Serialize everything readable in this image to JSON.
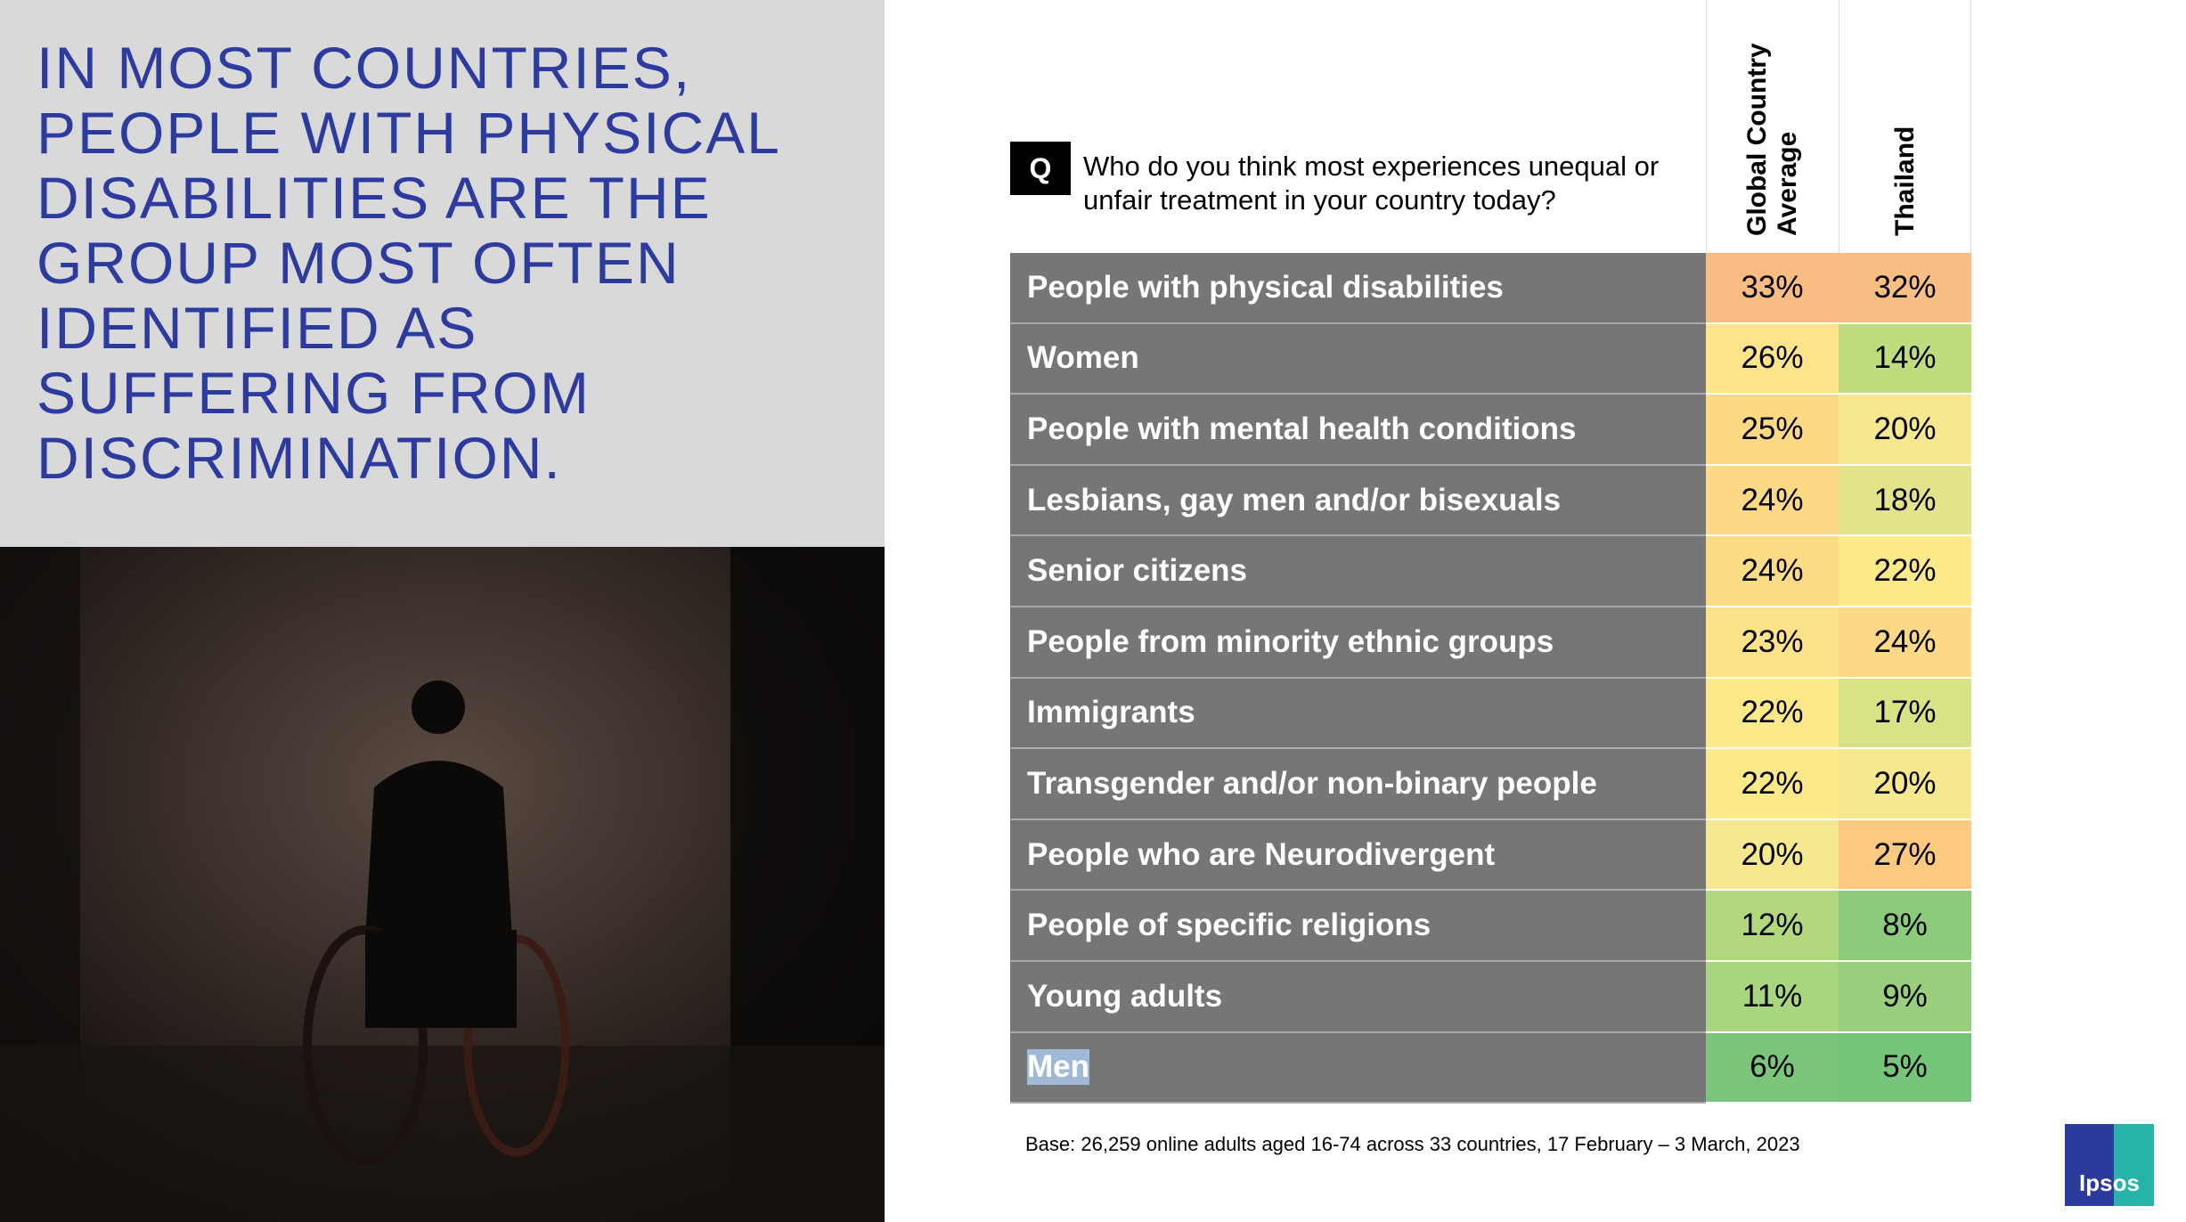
{
  "header": {
    "title_lines": [
      "IN MOST COUNTRIES,",
      "PEOPLE WITH PHYSICAL",
      "DISABILITIES ARE THE",
      "GROUP MOST OFTEN",
      "IDENTIFIED AS",
      "SUFFERING FROM",
      "DISCRIMINATION."
    ]
  },
  "question": {
    "badge": "Q",
    "lines": [
      "Who do you think most experiences unequal or",
      "unfair treatment in your country today?"
    ]
  },
  "table": {
    "columns": [
      [
        "Global Country",
        "Average"
      ],
      [
        "Thailand"
      ]
    ],
    "rows": [
      {
        "label": "People with  physical disabilities",
        "cells": [
          "33%",
          "32%"
        ],
        "colors": [
          "#f9bd84",
          "#f9be84"
        ]
      },
      {
        "label": "Women",
        "cells": [
          "26%",
          "14%"
        ],
        "colors": [
          "#fde38a",
          "#bfdd7f"
        ]
      },
      {
        "label": "People with mental health conditions",
        "cells": [
          "25%",
          "20%"
        ],
        "colors": [
          "#fed984",
          "#f5e88f"
        ]
      },
      {
        "label": "Lesbians, gay men and/or bisexuals",
        "cells": [
          "24%",
          "18%"
        ],
        "colors": [
          "#fdd986",
          "#e2e38a"
        ]
      },
      {
        "label": "Senior citizens",
        "cells": [
          "24%",
          "22%"
        ],
        "colors": [
          "#fddc86",
          "#fde98a"
        ]
      },
      {
        "label": "People from minority ethnic groups",
        "cells": [
          "23%",
          "24%"
        ],
        "colors": [
          "#fde28a",
          "#fdd985"
        ]
      },
      {
        "label": "Immigrants",
        "cells": [
          "22%",
          "17%"
        ],
        "colors": [
          "#fde98a",
          "#d8e286"
        ]
      },
      {
        "label": "Transgender and/or non-binary people",
        "cells": [
          "22%",
          "20%"
        ],
        "colors": [
          "#fde98a",
          "#f5e88f"
        ]
      },
      {
        "label": "People who are Neurodivergent",
        "cells": [
          "20%",
          "27%"
        ],
        "colors": [
          "#f5e88f",
          "#fcc97f"
        ]
      },
      {
        "label": "People of specific religions",
        "cells": [
          "12%",
          "8%"
        ],
        "colors": [
          "#b2d87e",
          "#8ccb7c"
        ]
      },
      {
        "label": "Young adults",
        "cells": [
          "11%",
          "9%"
        ],
        "colors": [
          "#a7d580",
          "#99cf7d"
        ]
      },
      {
        "label": "Men",
        "cells": [
          "6%",
          "5%"
        ],
        "colors": [
          "#7cc67c",
          "#77c47b"
        ]
      }
    ]
  },
  "footnote": "Base: 26,259 online adults aged 16-74 across 33 countries, 17 February – 3 March, 2023",
  "logo": "Ipsos"
}
